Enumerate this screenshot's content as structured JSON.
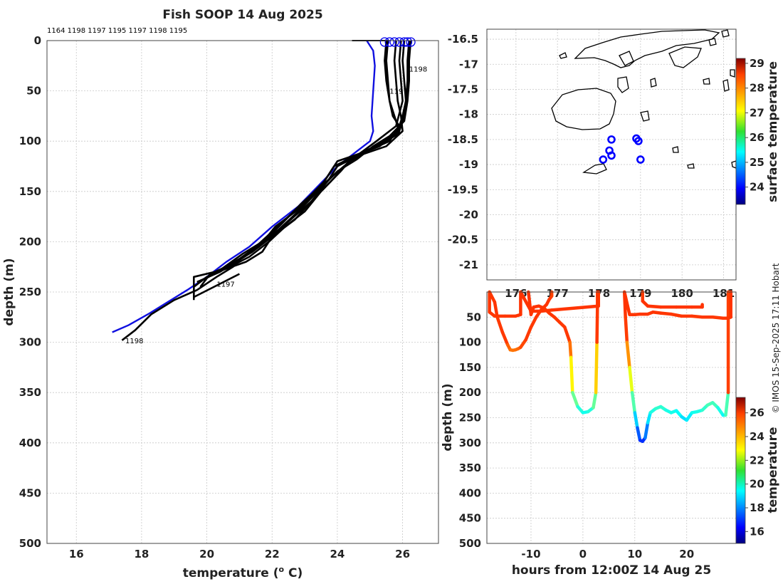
{
  "chart_data": [
    {
      "type": "line",
      "title": "Fish SOOP 14 Aug 2025",
      "xlabel": "temperature (",
      "xlabel_sup": "o",
      "xlabel_end": " C)",
      "ylabel": "depth (m)",
      "xlim": [
        15.1,
        27.1
      ],
      "ylim": [
        0,
        500
      ],
      "xticks": [
        16,
        18,
        20,
        22,
        24,
        26
      ],
      "yticks": [
        0,
        50,
        100,
        150,
        200,
        250,
        300,
        350,
        400,
        450,
        500
      ],
      "header_ids": "1164 1198 1197 1195 1197 1198 1195",
      "annotations": [
        {
          "text": "1198",
          "x": 26.2,
          "y": 28
        },
        {
          "text": "1197",
          "x": 25.6,
          "y": 50
        },
        {
          "text": "1197",
          "x": 20.3,
          "y": 242
        },
        {
          "text": "1198",
          "x": 17.5,
          "y": 298
        }
      ],
      "climatology": {
        "name": "climatology",
        "color": "#1010e0",
        "x": [
          24.9,
          25.1,
          25.15,
          25.1,
          25.05,
          25.1,
          25.0,
          24.6,
          24.0,
          23.4,
          22.8,
          22.0,
          21.3,
          20.6,
          20.0,
          19.4,
          18.8,
          18.2,
          17.6,
          17.1
        ],
        "y": [
          0,
          10,
          25,
          50,
          75,
          90,
          100,
          110,
          125,
          145,
          165,
          185,
          205,
          220,
          235,
          248,
          260,
          272,
          283,
          290
        ]
      },
      "profiles": [
        {
          "x": [
            25.55,
            25.5,
            25.55,
            25.6,
            25.7,
            25.9,
            25.6,
            24.9,
            24.0,
            23.6,
            23.0,
            22.5,
            22.0,
            21.5,
            21.0,
            20.8,
            20.3,
            19.7,
            19.0,
            18.3,
            17.8,
            17.4
          ],
          "y": [
            0,
            20,
            40,
            60,
            75,
            85,
            100,
            110,
            120,
            140,
            160,
            175,
            190,
            205,
            218,
            225,
            235,
            248,
            258,
            272,
            288,
            298
          ]
        },
        {
          "x": [
            25.8,
            25.75,
            25.8,
            25.85,
            25.95,
            26.0,
            25.5,
            24.6,
            24.0,
            23.7,
            23.2,
            22.5,
            22.0,
            21.7,
            21.2,
            20.5,
            19.6,
            19.6,
            21.0
          ],
          "y": [
            0,
            20,
            40,
            60,
            75,
            90,
            105,
            115,
            125,
            140,
            160,
            180,
            195,
            210,
            220,
            228,
            235,
            255,
            232
          ]
        },
        {
          "x": [
            26.05,
            26.0,
            26.05,
            26.1,
            26.0,
            25.85,
            25.3,
            24.5,
            24.1,
            23.5,
            23.0,
            22.4,
            21.9,
            21.3,
            20.7,
            20.0,
            19.6,
            19.6
          ],
          "y": [
            0,
            20,
            40,
            60,
            75,
            90,
            105,
            115,
            130,
            150,
            170,
            185,
            200,
            215,
            225,
            235,
            245,
            258
          ]
        },
        {
          "x": [
            26.2,
            26.15,
            26.15,
            26.1,
            26.05,
            25.9,
            25.4,
            24.8,
            24.3,
            23.8,
            23.2,
            22.7,
            22.0,
            21.4,
            20.8,
            20.1,
            19.8
          ],
          "y": [
            0,
            20,
            40,
            60,
            75,
            90,
            100,
            112,
            122,
            140,
            160,
            178,
            195,
            210,
            222,
            232,
            245
          ]
        },
        {
          "x": [
            25.5,
            25.45,
            25.5,
            25.6,
            25.8,
            25.9,
            25.5,
            24.7,
            23.9,
            23.5,
            22.8,
            22.1,
            21.6,
            21.0,
            20.4,
            19.7
          ],
          "y": [
            0,
            20,
            40,
            60,
            80,
            92,
            100,
            112,
            125,
            145,
            168,
            185,
            205,
            218,
            230,
            240
          ]
        },
        {
          "x": [
            25.95,
            25.9,
            25.95,
            26.0,
            25.8,
            25.2,
            24.7,
            24.2,
            23.6,
            22.9,
            22.3,
            21.8,
            21.1,
            20.5,
            19.9
          ],
          "y": [
            0,
            20,
            40,
            60,
            85,
            100,
            112,
            125,
            142,
            162,
            182,
            198,
            212,
            226,
            238
          ]
        },
        {
          "x": [
            26.25,
            26.2,
            26.2,
            26.15,
            26.05,
            25.6,
            25.1,
            24.6,
            24.0,
            23.4,
            22.8,
            22.2,
            21.6,
            21.0,
            20.3
          ],
          "y": [
            0,
            20,
            40,
            60,
            80,
            95,
            105,
            118,
            130,
            150,
            170,
            188,
            203,
            217,
            230
          ]
        }
      ],
      "surface_line": {
        "x": [
          24.45,
          25.6
        ],
        "y": [
          0,
          0
        ]
      },
      "surface_circles_x": [
        25.45,
        25.6,
        25.75,
        25.9,
        26.05,
        26.15,
        26.25
      ]
    },
    {
      "type": "scatter",
      "title": "",
      "xlabel": "",
      "ylabel": "",
      "xlim": [
        175.3,
        181.3
      ],
      "ylim": [
        -21.3,
        -16.3
      ],
      "xticks": [
        176,
        177,
        178,
        179,
        180,
        181
      ],
      "xtick_labels": [
        "176",
        "177",
        "178",
        "179",
        "180",
        "181"
      ],
      "yticks": [
        -16.5,
        -17,
        -17.5,
        -18,
        -18.5,
        -19,
        -19.5,
        -20,
        -20.5,
        -21
      ],
      "ytick_labels": [
        "-16.5",
        "-17",
        "-17.5",
        "-18",
        "-18.5",
        "-19",
        "-19.5",
        "-20",
        "-20.5",
        "-21"
      ],
      "stations": [
        {
          "lon": 178.3,
          "lat": -18.5,
          "color": "#0000ff"
        },
        {
          "lon": 178.9,
          "lat": -18.48,
          "color": "#0000ff"
        },
        {
          "lon": 178.95,
          "lat": -18.53,
          "color": "#0000ff"
        },
        {
          "lon": 178.25,
          "lat": -18.72,
          "color": "#0000ff"
        },
        {
          "lon": 178.3,
          "lat": -18.82,
          "color": "#0000ff"
        },
        {
          "lon": 178.1,
          "lat": -18.9,
          "color": "#0000ff"
        },
        {
          "lon": 179.0,
          "lat": -18.9,
          "color": "#0000ff"
        }
      ],
      "colorbar": {
        "label": "surface temperature",
        "range": [
          23.3,
          29.2
        ],
        "ticks": [
          24,
          25,
          26,
          27,
          28,
          29
        ]
      }
    },
    {
      "type": "scatter",
      "title": "",
      "xlabel": "hours from 12:00Z 14 Aug 25",
      "ylabel": "depth (m)",
      "xlim": [
        -18.5,
        29.5
      ],
      "ylim": [
        0,
        500
      ],
      "xticks": [
        -10,
        0,
        10,
        20
      ],
      "yticks": [
        0,
        50,
        100,
        150,
        200,
        250,
        300,
        350,
        400,
        450,
        500
      ],
      "ytick_labels": [
        "0",
        "50",
        "100",
        "150",
        "200",
        "250",
        "300",
        "350",
        "400",
        "450",
        "500"
      ],
      "casts": [
        {
          "t": [
            -18.0,
            -18.0,
            -17.0,
            -15.0,
            -13.0,
            -12.0,
            -12.0
          ],
          "d": [
            0,
            40,
            48,
            48,
            48,
            45,
            0
          ]
        },
        {
          "t": [
            -12.0,
            -10.0,
            -8.0,
            -6.0,
            3.0,
            3.0
          ],
          "d": [
            0,
            38,
            38,
            36,
            28,
            0
          ]
        },
        {
          "t": [
            -18.0,
            -17.0,
            -16.5,
            -15.5,
            -14.5,
            -14.0,
            -13.5,
            -13.0,
            -12.5,
            -12.0,
            -11.0,
            -10.0,
            -9.0,
            -8.0,
            -7.0,
            -6.5,
            -6.0,
            -6.0
          ],
          "d": [
            0,
            20,
            50,
            80,
            105,
            115,
            116,
            115,
            113,
            110,
            95,
            70,
            50,
            35,
            25,
            15,
            8,
            0
          ]
        },
        {
          "t": [
            -10.5,
            -10.0,
            -9.5,
            -8.5,
            -7.5,
            -6.5,
            -5.5,
            -4.5,
            -3.5,
            -2.5,
            -2.3,
            -2.0,
            -1.0,
            0.0,
            1.0,
            2.0,
            2.5,
            2.7,
            2.8,
            2.8
          ],
          "d": [
            0,
            45,
            30,
            28,
            32,
            42,
            50,
            60,
            70,
            100,
            130,
            200,
            228,
            240,
            238,
            230,
            200,
            100,
            30,
            0
          ]
        },
        {
          "t": [
            8.0,
            8.2,
            8.5,
            9.0,
            9.5,
            10.0,
            10.5,
            11.0,
            11.5,
            12.0,
            12.5,
            13.0,
            14.0,
            15.0,
            16.0,
            17.0,
            18.0,
            19.0,
            20.0,
            21.0,
            22.0,
            23.0,
            24.0,
            25.0,
            26.0,
            27.0,
            27.5,
            28.0,
            28.0
          ],
          "d": [
            0,
            50,
            100,
            150,
            200,
            240,
            270,
            295,
            297,
            290,
            260,
            240,
            232,
            228,
            235,
            240,
            236,
            248,
            255,
            240,
            238,
            235,
            225,
            220,
            230,
            245,
            245,
            200,
            0
          ]
        },
        {
          "t": [
            8.0,
            9.0,
            10.0,
            11.0,
            12.5,
            13.5,
            15.0,
            17.0,
            19.0,
            21.0,
            23.0,
            25.0,
            27.0,
            28.0,
            28.5,
            28.5
          ],
          "d": [
            0,
            45,
            45,
            44,
            44,
            40,
            42,
            44,
            48,
            48,
            50,
            50,
            52,
            52,
            50,
            0
          ]
        },
        {
          "t": [
            11.5,
            11.5,
            12.5,
            15.0,
            18.0,
            21.0,
            23.0,
            23.0
          ],
          "d": [
            0,
            18,
            28,
            30,
            30,
            30,
            30,
            25
          ]
        }
      ],
      "colorbar": {
        "label": "temperature",
        "range": [
          15,
          27.3
        ],
        "ticks": [
          16,
          18,
          20,
          22,
          24,
          26
        ]
      }
    }
  ],
  "copyright": "© IMOS 15-Sep-2025 17:11 Hobart"
}
